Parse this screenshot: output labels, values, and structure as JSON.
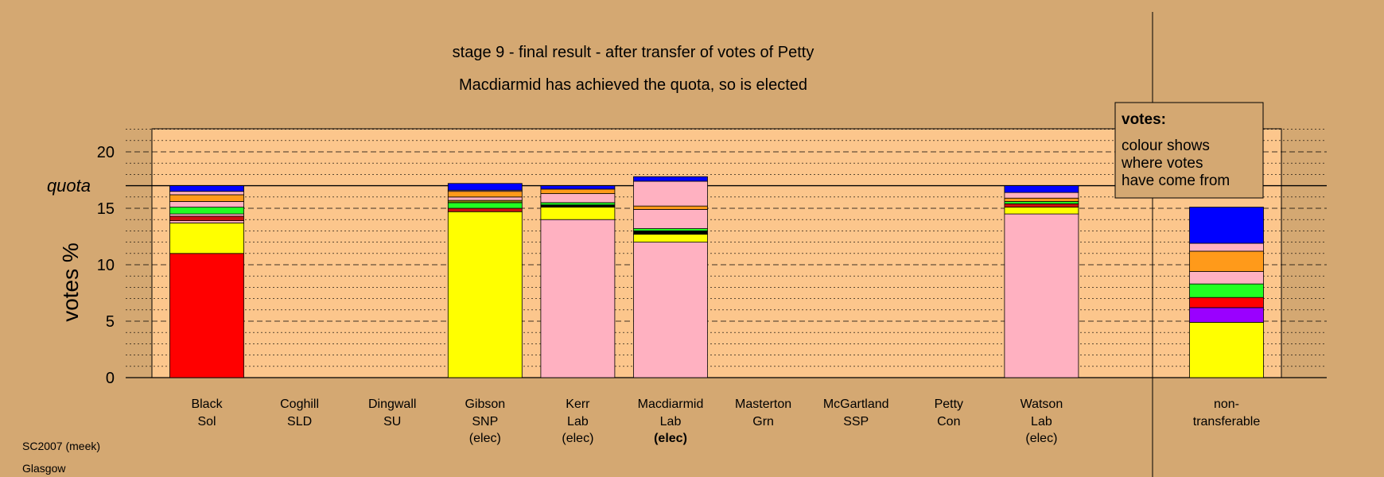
{
  "chart_data": {
    "type": "bar",
    "title": "stage 9 - final result - after transfer of votes of Petty",
    "subtitle": "Macdiarmid has achieved the quota, so is elected",
    "ylabel": "votes %",
    "ylim": [
      0,
      22
    ],
    "yticks": [
      0,
      5,
      10,
      15,
      20
    ],
    "quota": 17.0,
    "quota_label": "quota",
    "footer": [
      "SC2007 (meek)",
      "Glasgow"
    ],
    "legend": {
      "title": "votes:",
      "lines": [
        "colour shows",
        "where votes",
        "have come from"
      ],
      "position": "top-right"
    },
    "colors": {
      "background": "#d4a872",
      "plot": "#fcc68c",
      "red": "#ff0000",
      "yellow": "#ffff00",
      "pink": "#ffb1c1",
      "green": "#22ff22",
      "orange": "#ff9a1a",
      "blue": "#0000ff",
      "purple": "#9a00ff",
      "darkred": "#cc1010",
      "olive": "#808000",
      "black": "#000000"
    },
    "candidates": [
      {
        "name": "Black",
        "party": "Sol",
        "status": "",
        "segments": [
          {
            "color": "red",
            "value": 11.0
          },
          {
            "color": "yellow",
            "value": 2.7
          },
          {
            "color": "pink",
            "value": 0.2
          },
          {
            "color": "darkred",
            "value": 0.4
          },
          {
            "color": "pink",
            "value": 0.2
          },
          {
            "color": "green",
            "value": 0.6
          },
          {
            "color": "pink",
            "value": 0.5
          },
          {
            "color": "orange",
            "value": 0.6
          },
          {
            "color": "pink",
            "value": 0.3
          },
          {
            "color": "blue",
            "value": 0.5
          }
        ]
      },
      {
        "name": "Coghill",
        "party": "SLD",
        "status": "",
        "segments": []
      },
      {
        "name": "Dingwall",
        "party": "SU",
        "status": "",
        "segments": []
      },
      {
        "name": "Gibson",
        "party": "SNP",
        "status": "(elec)",
        "segments": [
          {
            "color": "yellow",
            "value": 14.7
          },
          {
            "color": "darkred",
            "value": 0.3
          },
          {
            "color": "green",
            "value": 0.5
          },
          {
            "color": "olive",
            "value": 0.2
          },
          {
            "color": "pink",
            "value": 0.3
          },
          {
            "color": "orange",
            "value": 0.5
          },
          {
            "color": "pink",
            "value": 0.1
          },
          {
            "color": "blue",
            "value": 0.6
          }
        ]
      },
      {
        "name": "Kerr",
        "party": "Lab",
        "status": "(elec)",
        "segments": [
          {
            "color": "pink",
            "value": 14.0
          },
          {
            "color": "yellow",
            "value": 1.1
          },
          {
            "color": "black",
            "value": 0.2
          },
          {
            "color": "green",
            "value": 0.2
          },
          {
            "color": "pink",
            "value": 0.8
          },
          {
            "color": "orange",
            "value": 0.4
          },
          {
            "color": "blue",
            "value": 0.3
          }
        ]
      },
      {
        "name": "Macdiarmid",
        "party": "Lab",
        "status": "(elec)",
        "status_bold": true,
        "segments": [
          {
            "color": "pink",
            "value": 12.0
          },
          {
            "color": "yellow",
            "value": 0.7
          },
          {
            "color": "black",
            "value": 0.3
          },
          {
            "color": "green",
            "value": 0.2
          },
          {
            "color": "pink",
            "value": 1.7
          },
          {
            "color": "orange",
            "value": 0.3
          },
          {
            "color": "pink",
            "value": 2.2
          },
          {
            "color": "blue",
            "value": 0.4
          }
        ]
      },
      {
        "name": "Masterton",
        "party": "Grn",
        "status": "",
        "segments": []
      },
      {
        "name": "McGartland",
        "party": "SSP",
        "status": "",
        "segments": []
      },
      {
        "name": "Petty",
        "party": "Con",
        "status": "",
        "segments": []
      },
      {
        "name": "Watson",
        "party": "Lab",
        "status": "(elec)",
        "segments": [
          {
            "color": "pink",
            "value": 14.5
          },
          {
            "color": "yellow",
            "value": 0.6
          },
          {
            "color": "darkred",
            "value": 0.3
          },
          {
            "color": "green",
            "value": 0.2
          },
          {
            "color": "orange",
            "value": 0.3
          },
          {
            "color": "pink",
            "value": 0.5
          },
          {
            "color": "blue",
            "value": 0.6
          }
        ]
      }
    ],
    "nontransferable": {
      "label": [
        "non-",
        "transferable"
      ],
      "segments": [
        {
          "color": "yellow",
          "value": 4.9
        },
        {
          "color": "purple",
          "value": 1.3
        },
        {
          "color": "red",
          "value": 0.9
        },
        {
          "color": "green",
          "value": 1.2
        },
        {
          "color": "pink",
          "value": 1.1
        },
        {
          "color": "orange",
          "value": 1.8
        },
        {
          "color": "pink",
          "value": 0.7
        },
        {
          "color": "blue",
          "value": 3.2
        }
      ]
    }
  }
}
